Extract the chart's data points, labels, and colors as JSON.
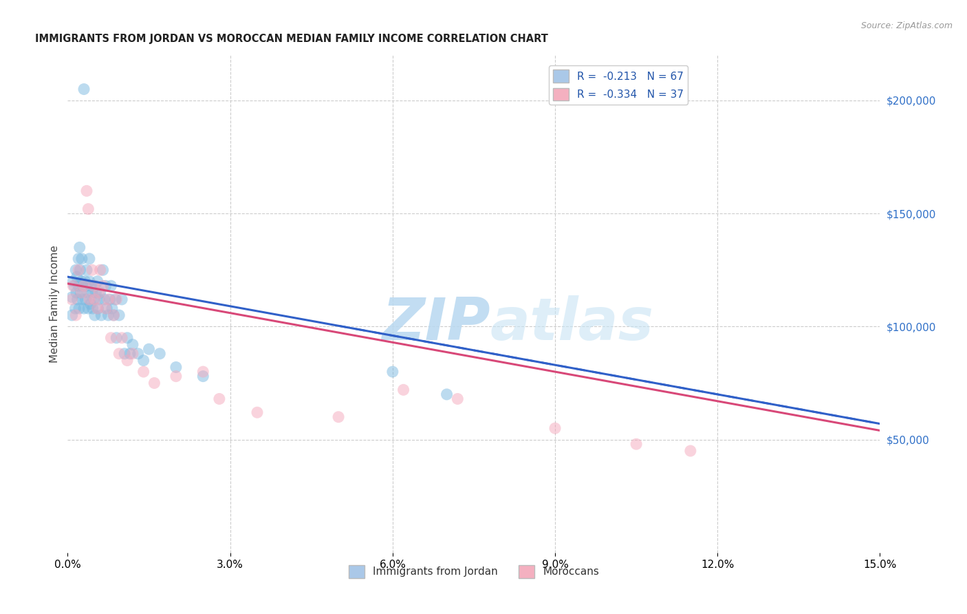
{
  "title": "IMMIGRANTS FROM JORDAN VS MOROCCAN MEDIAN FAMILY INCOME CORRELATION CHART",
  "source": "Source: ZipAtlas.com",
  "ylabel": "Median Family Income",
  "xlim": [
    0.0,
    0.15
  ],
  "ylim": [
    0,
    220000
  ],
  "xticks": [
    0.0,
    0.03,
    0.06,
    0.09,
    0.12,
    0.15
  ],
  "xtick_labels": [
    "0.0%",
    "3.0%",
    "6.0%",
    "9.0%",
    "12.0%",
    "15.0%"
  ],
  "yticks_right": [
    50000,
    100000,
    150000,
    200000
  ],
  "ytick_labels_right": [
    "$50,000",
    "$100,000",
    "$150,000",
    "$200,000"
  ],
  "legend_entry1": "R =  -0.213   N = 67",
  "legend_entry2": "R =  -0.334   N = 37",
  "legend_color1": "#aac8e8",
  "legend_color2": "#f4b0c0",
  "series1_color": "#7ab8e0",
  "series2_color": "#f4a8bc",
  "line1_color": "#3060c8",
  "line2_color": "#d84878",
  "watermark_zip": "ZIP",
  "watermark_atlas": "atlas",
  "background_color": "#ffffff",
  "jordan_x": [
    0.0008,
    0.0008,
    0.001,
    0.0012,
    0.0014,
    0.0015,
    0.0016,
    0.0017,
    0.0018,
    0.002,
    0.002,
    0.0021,
    0.0022,
    0.0023,
    0.0024,
    0.0025,
    0.0026,
    0.0027,
    0.0028,
    0.003,
    0.003,
    0.0032,
    0.0033,
    0.0035,
    0.0035,
    0.0037,
    0.0038,
    0.004,
    0.004,
    0.0042,
    0.0043,
    0.0045,
    0.0046,
    0.0048,
    0.005,
    0.005,
    0.0052,
    0.0055,
    0.0056,
    0.0058,
    0.006,
    0.0062,
    0.0065,
    0.0068,
    0.007,
    0.0072,
    0.0075,
    0.0078,
    0.008,
    0.0082,
    0.0085,
    0.0088,
    0.009,
    0.0095,
    0.01,
    0.0105,
    0.011,
    0.0115,
    0.012,
    0.013,
    0.014,
    0.015,
    0.017,
    0.02,
    0.025,
    0.06,
    0.07
  ],
  "jordan_y": [
    113000,
    105000,
    120000,
    118000,
    108000,
    125000,
    115000,
    122000,
    112000,
    130000,
    118000,
    108000,
    135000,
    125000,
    115000,
    120000,
    130000,
    112000,
    118000,
    108000,
    205000,
    120000,
    112000,
    125000,
    118000,
    115000,
    108000,
    120000,
    130000,
    110000,
    118000,
    115000,
    108000,
    112000,
    118000,
    105000,
    115000,
    120000,
    108000,
    112000,
    115000,
    105000,
    125000,
    112000,
    118000,
    108000,
    105000,
    112000,
    118000,
    108000,
    105000,
    112000,
    95000,
    105000,
    112000,
    88000,
    95000,
    88000,
    92000,
    88000,
    85000,
    90000,
    88000,
    82000,
    78000,
    80000,
    70000
  ],
  "moroccan_x": [
    0.0008,
    0.001,
    0.0015,
    0.002,
    0.0025,
    0.003,
    0.0035,
    0.0038,
    0.004,
    0.0045,
    0.0048,
    0.005,
    0.0055,
    0.0058,
    0.006,
    0.0065,
    0.007,
    0.0075,
    0.008,
    0.0085,
    0.009,
    0.0095,
    0.01,
    0.011,
    0.012,
    0.014,
    0.016,
    0.02,
    0.025,
    0.028,
    0.035,
    0.05,
    0.062,
    0.072,
    0.09,
    0.105,
    0.115
  ],
  "moroccan_y": [
    112000,
    118000,
    105000,
    125000,
    115000,
    118000,
    160000,
    152000,
    112000,
    125000,
    118000,
    112000,
    108000,
    115000,
    125000,
    118000,
    108000,
    112000,
    95000,
    105000,
    112000,
    88000,
    95000,
    85000,
    88000,
    80000,
    75000,
    78000,
    80000,
    68000,
    62000,
    60000,
    72000,
    68000,
    55000,
    48000,
    45000
  ],
  "line1_x0": 0.0,
  "line1_y0": 122000,
  "line1_x1": 0.15,
  "line1_y1": 57000,
  "line2_x0": 0.0,
  "line2_y0": 119000,
  "line2_x1": 0.15,
  "line2_y1": 54000
}
